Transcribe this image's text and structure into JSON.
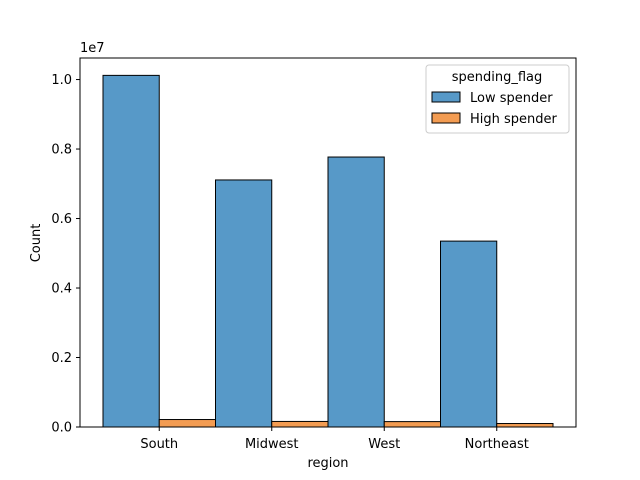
{
  "chart_data": {
    "type": "bar",
    "categories": [
      "South",
      "Midwest",
      "West",
      "Northeast"
    ],
    "series": [
      {
        "name": "Low spender",
        "values": [
          10120000,
          7110000,
          7770000,
          5350000
        ],
        "color": "#5799c8",
        "edge": "#000000"
      },
      {
        "name": "High spender",
        "values": [
          215000,
          160000,
          155000,
          100000
        ],
        "color": "#f39c52",
        "edge": "#000000"
      }
    ],
    "title": "",
    "xlabel": "region",
    "ylabel": "Count",
    "y_offset_label": "1e7",
    "y_scale": 10000000,
    "ylim": [
      0,
      10620000
    ],
    "yticks": [
      0.0,
      0.2,
      0.4,
      0.6,
      0.8,
      1.0
    ],
    "ytick_labels": [
      "0.0",
      "0.2",
      "0.4",
      "0.6",
      "0.8",
      "1.0"
    ],
    "legend": {
      "title": "spending_flag",
      "position": "top-right"
    },
    "grid": false
  }
}
